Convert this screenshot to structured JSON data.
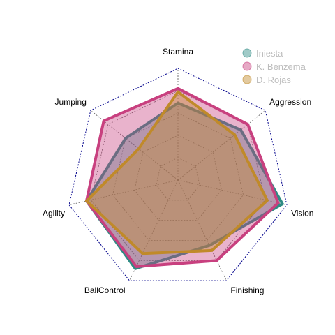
{
  "chart_data": {
    "type": "radar",
    "axes": [
      "Stamina",
      "Aggression",
      "Vision",
      "Finishing",
      "BallControl",
      "Agility",
      "Jumping"
    ],
    "range": [
      0,
      100
    ],
    "rings": 5,
    "series": [
      {
        "name": "Iniesta",
        "values": [
          69,
          72,
          96,
          65,
          88,
          84,
          60
        ],
        "color": "#2e8b84"
      },
      {
        "name": "K. Benzema",
        "values": [
          82,
          80,
          92,
          80,
          86,
          84,
          85
        ],
        "color": "#c8407f"
      },
      {
        "name": "D. Rojas",
        "values": [
          79,
          65,
          82,
          70,
          73,
          84,
          45
        ],
        "color": "#c08a2a"
      }
    ],
    "legend_position": "top-right"
  }
}
